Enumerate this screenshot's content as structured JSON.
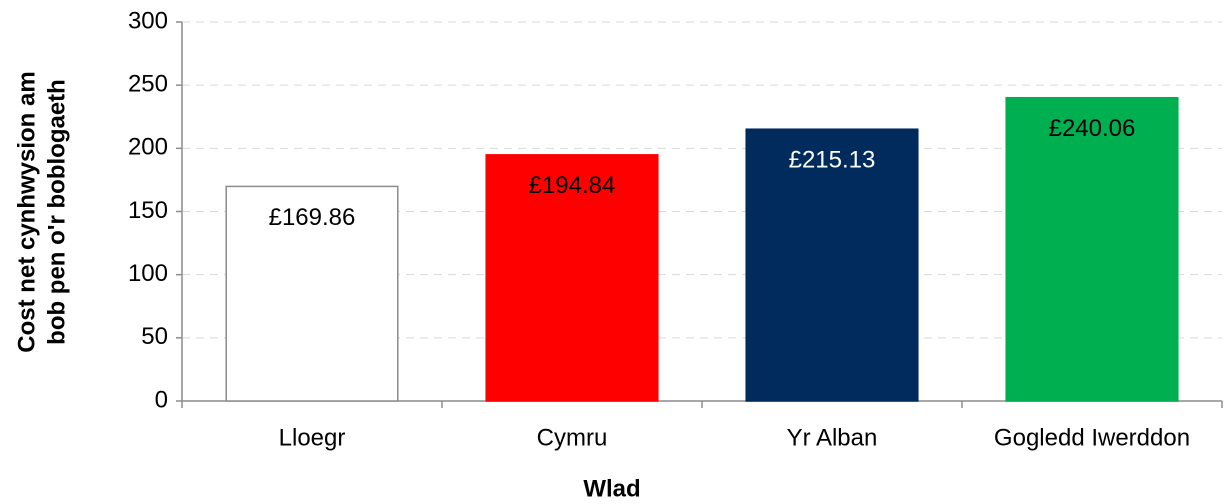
{
  "chart_data": {
    "type": "bar",
    "categories": [
      "Lloegr",
      "Cymru",
      "Yr Alban",
      "Gogledd Iwerddon"
    ],
    "values": [
      169.86,
      194.84,
      215.13,
      240.06
    ],
    "value_labels": [
      "£169.86",
      "£194.84",
      "£215.13",
      "£240.06"
    ],
    "colors": [
      "#ffffff",
      "#ff0000",
      "#002b5c",
      "#00b050"
    ],
    "edgecolors": [
      "#8c8c8c",
      "#ff0000",
      "#002b5c",
      "#00b050"
    ],
    "label_colors": [
      "#000000",
      "#000000",
      "#ffffff",
      "#000000"
    ],
    "xlabel": "Wlad",
    "ylabel": [
      "Cost net cynhwysion am",
      "bob pen o'r boblogaeth"
    ],
    "ylim": [
      0,
      300
    ],
    "yticks": [
      0,
      50,
      100,
      150,
      200,
      250,
      300
    ],
    "grid": true
  }
}
